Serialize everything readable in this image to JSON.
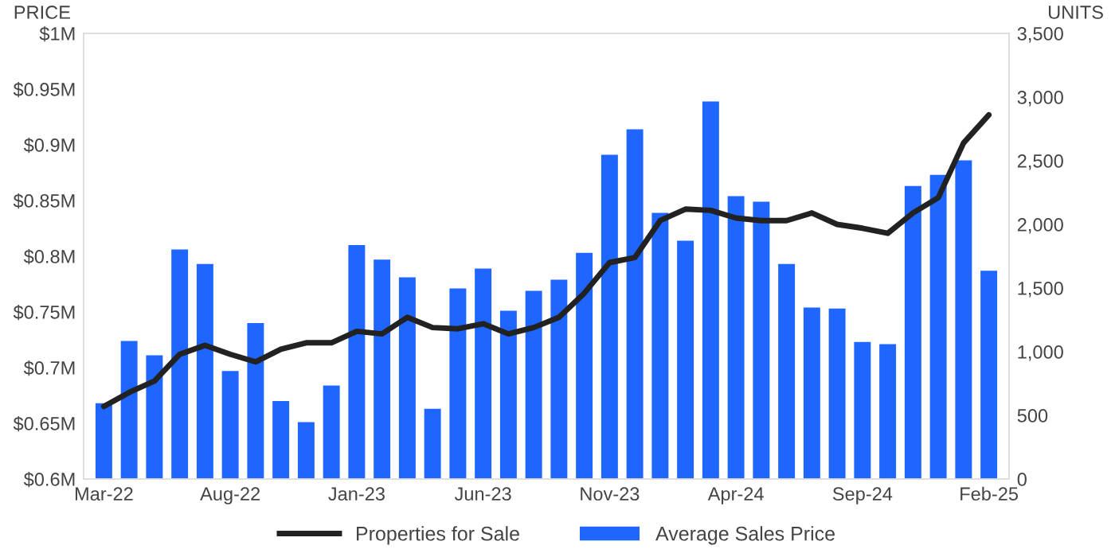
{
  "chart_data": {
    "type": "bar",
    "ylabel": "PRICE",
    "y2label": "UNITS",
    "categories": [
      "Mar-22",
      null,
      null,
      null,
      null,
      "Aug-22",
      null,
      null,
      null,
      null,
      "Jan-23",
      null,
      null,
      null,
      null,
      "Jun-23",
      null,
      null,
      null,
      null,
      "Nov-23",
      null,
      null,
      null,
      null,
      "Apr-24",
      null,
      null,
      null,
      null,
      "Sep-24",
      null,
      null,
      null,
      null,
      "Feb-25"
    ],
    "series": [
      {
        "name": "Properties for Sale",
        "type": "line",
        "axis": "y2",
        "color": "#222222",
        "values": [
          570,
          680,
          770,
          980,
          1050,
          980,
          920,
          1020,
          1070,
          1070,
          1160,
          1140,
          1270,
          1190,
          1180,
          1220,
          1140,
          1190,
          1270,
          1460,
          1700,
          1740,
          2030,
          2120,
          2110,
          2050,
          2030,
          2030,
          2090,
          2000,
          1970,
          1930,
          2090,
          2210,
          2640,
          2860
        ]
      },
      {
        "name": "Average Sales Price",
        "axis": "y",
        "color": "#1f66ff",
        "values": [
          0.668,
          0.724,
          0.711,
          0.806,
          0.793,
          0.697,
          0.74,
          0.67,
          0.651,
          0.684,
          0.81,
          0.797,
          0.781,
          0.663,
          0.771,
          0.789,
          0.751,
          0.769,
          0.779,
          0.803,
          0.891,
          0.914,
          0.839,
          0.814,
          0.939,
          0.854,
          0.849,
          0.793,
          0.754,
          0.753,
          0.723,
          0.721,
          0.863,
          0.873,
          0.886,
          0.787
        ]
      }
    ],
    "ylim": [
      0.6,
      1
    ],
    "yticks": [
      {
        "value": 0.6,
        "label": "$0.6M"
      },
      {
        "value": 0.65,
        "label": "$0.65M"
      },
      {
        "value": 0.7,
        "label": "$0.7M"
      },
      {
        "value": 0.75,
        "label": "$0.75M"
      },
      {
        "value": 0.8,
        "label": "$0.8M"
      },
      {
        "value": 0.85,
        "label": "$0.85M"
      },
      {
        "value": 0.9,
        "label": "$0.9M"
      },
      {
        "value": 0.95,
        "label": "$0.95M"
      },
      {
        "value": 1,
        "label": "$1M"
      }
    ],
    "y2lim": [
      0,
      3500
    ],
    "y2ticks": [
      0,
      {
        "value": 500,
        "label": "500"
      },
      {
        "value": 1000,
        "label": "1,000"
      },
      {
        "value": 1500,
        "label": "1,500"
      },
      {
        "value": 2000,
        "label": "2,000"
      },
      {
        "value": 2500,
        "label": "2,500"
      },
      {
        "value": 3000,
        "label": "3,000"
      },
      {
        "value": 3500,
        "label": "3,500"
      }
    ],
    "grid": false,
    "legend": "bottom"
  }
}
